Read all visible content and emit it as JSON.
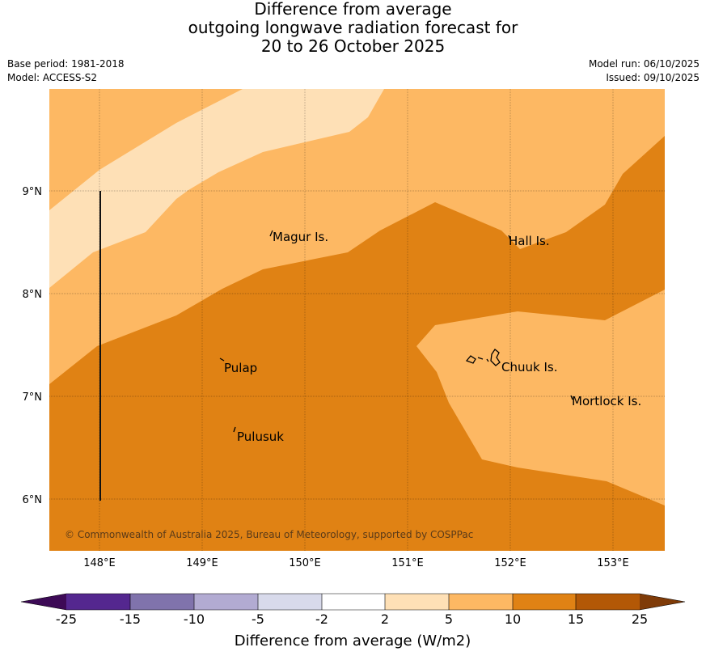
{
  "title": {
    "line1": "Difference from average",
    "line2": "outgoing longwave radiation forecast for",
    "line3": "20 to 26 October 2025"
  },
  "meta": {
    "base_period": "Base period: 1981-2018",
    "model": "Model: ACCESS-S2",
    "model_run": "Model run: 06/10/2025",
    "issued": "Issued: 09/10/2025"
  },
  "map": {
    "longitude_labels": [
      "148°E",
      "149°E",
      "150°E",
      "151°E",
      "152°E",
      "153°E"
    ],
    "latitude_labels": [
      "9°N",
      "8°N",
      "7°N",
      "6°N"
    ],
    "places": [
      {
        "name": "Magur Is."
      },
      {
        "name": "Hall Is."
      },
      {
        "name": "Pulap"
      },
      {
        "name": "Chuuk Is."
      },
      {
        "name": "Mortlock Is."
      },
      {
        "name": "Pulusuk"
      }
    ],
    "copyright": "© Commonwealth of Australia 2025, Bureau of Meteorology, supported by COSPPac",
    "anomaly_classes_present": [
      "2 to 5",
      "5 to 10",
      "10 to 15"
    ]
  },
  "colorbar": {
    "title": "Difference from average (W/m2)",
    "tick_labels": [
      "-25",
      "-15",
      "-10",
      "-5",
      "-2",
      "2",
      "5",
      "10",
      "15",
      "25"
    ],
    "colors": {
      "below_min": "#3d0a56",
      "c1": "#54278f",
      "c2": "#8073ac",
      "c3": "#b2abd2",
      "c4": "#d8daeb",
      "c5": "#ffffff",
      "c6": "#fee0b6",
      "c7": "#fdb863",
      "c8": "#e08214",
      "c9": "#b35806",
      "above_max": "#7f3b08"
    }
  }
}
